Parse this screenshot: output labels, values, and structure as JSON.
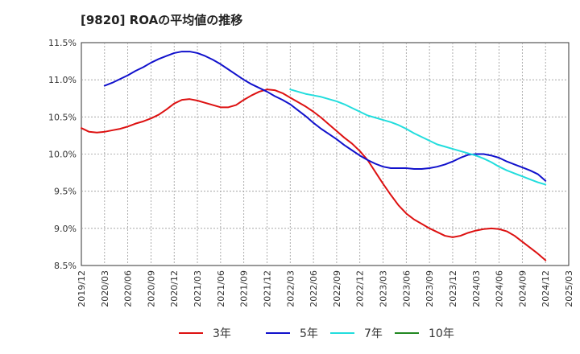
{
  "chart_data": {
    "type": "line",
    "title": "[9820]  ROAの平均値の推移",
    "xlabel": "",
    "ylabel": "",
    "x_tick_labels": [
      "2019/12",
      "2020/03",
      "2020/06",
      "2020/09",
      "2020/12",
      "2021/03",
      "2021/06",
      "2021/09",
      "2021/12",
      "2022/03",
      "2022/06",
      "2022/09",
      "2022/12",
      "2023/03",
      "2023/06",
      "2023/09",
      "2023/12",
      "2024/03",
      "2024/06",
      "2024/09",
      "2024/12",
      "2025/03"
    ],
    "y_tick_labels": [
      "8.5%",
      "9.0%",
      "9.5%",
      "10.0%",
      "10.5%",
      "11.0%",
      "11.5%"
    ],
    "y_ticks": [
      8.5,
      9.0,
      9.5,
      10.0,
      10.5,
      11.0,
      11.5
    ],
    "ylim": [
      8.5,
      11.5
    ],
    "x_range": [
      "2019/12",
      "2025/03"
    ],
    "grid": true,
    "legend_position": "bottom",
    "series": [
      {
        "name": "3年",
        "color": "#dd1111",
        "points": [
          [
            "2019/12",
            10.35
          ],
          [
            "2020/01",
            10.3
          ],
          [
            "2020/02",
            10.29
          ],
          [
            "2020/03",
            10.3
          ],
          [
            "2020/04",
            10.32
          ],
          [
            "2020/05",
            10.34
          ],
          [
            "2020/06",
            10.37
          ],
          [
            "2020/07",
            10.41
          ],
          [
            "2020/08",
            10.44
          ],
          [
            "2020/09",
            10.48
          ],
          [
            "2020/10",
            10.53
          ],
          [
            "2020/11",
            10.6
          ],
          [
            "2020/12",
            10.68
          ],
          [
            "2021/01",
            10.73
          ],
          [
            "2021/02",
            10.74
          ],
          [
            "2021/03",
            10.72
          ],
          [
            "2021/04",
            10.69
          ],
          [
            "2021/05",
            10.66
          ],
          [
            "2021/06",
            10.63
          ],
          [
            "2021/07",
            10.63
          ],
          [
            "2021/08",
            10.66
          ],
          [
            "2021/09",
            10.73
          ],
          [
            "2021/10",
            10.79
          ],
          [
            "2021/11",
            10.84
          ],
          [
            "2021/12",
            10.87
          ],
          [
            "2022/01",
            10.86
          ],
          [
            "2022/02",
            10.82
          ],
          [
            "2022/03",
            10.76
          ],
          [
            "2022/04",
            10.7
          ],
          [
            "2022/05",
            10.64
          ],
          [
            "2022/06",
            10.57
          ],
          [
            "2022/07",
            10.49
          ],
          [
            "2022/08",
            10.4
          ],
          [
            "2022/09",
            10.31
          ],
          [
            "2022/10",
            10.22
          ],
          [
            "2022/11",
            10.14
          ],
          [
            "2022/12",
            10.04
          ],
          [
            "2022/13",
            9.92
          ],
          [
            "2023/02",
            9.76
          ],
          [
            "2023/03",
            9.6
          ],
          [
            "2023/04",
            9.45
          ],
          [
            "2023/05",
            9.31
          ],
          [
            "2023/06",
            9.2
          ],
          [
            "2023/07",
            9.12
          ],
          [
            "2023/08",
            9.06
          ],
          [
            "2023/09",
            9.0
          ],
          [
            "2023/10",
            8.95
          ],
          [
            "2023/11",
            8.9
          ],
          [
            "2023/12",
            8.88
          ],
          [
            "2024/01",
            8.9
          ],
          [
            "2024/02",
            8.94
          ],
          [
            "2024/03",
            8.97
          ],
          [
            "2024/04",
            8.99
          ],
          [
            "2024/05",
            9.0
          ],
          [
            "2024/06",
            8.99
          ],
          [
            "2024/07",
            8.96
          ],
          [
            "2024/08",
            8.9
          ],
          [
            "2024/09",
            8.82
          ],
          [
            "2024/10",
            8.74
          ],
          [
            "2024/11",
            8.66
          ],
          [
            "2024/12",
            8.57
          ]
        ]
      },
      {
        "name": "5年",
        "color": "#1111cc",
        "points": [
          [
            "2020/03",
            10.92
          ],
          [
            "2020/04",
            10.96
          ],
          [
            "2020/05",
            11.01
          ],
          [
            "2020/06",
            11.06
          ],
          [
            "2020/07",
            11.12
          ],
          [
            "2020/08",
            11.17
          ],
          [
            "2020/09",
            11.23
          ],
          [
            "2020/10",
            11.28
          ],
          [
            "2020/11",
            11.32
          ],
          [
            "2020/12",
            11.36
          ],
          [
            "2021/01",
            11.38
          ],
          [
            "2021/02",
            11.38
          ],
          [
            "2021/03",
            11.36
          ],
          [
            "2021/04",
            11.32
          ],
          [
            "2021/05",
            11.27
          ],
          [
            "2021/06",
            11.21
          ],
          [
            "2021/07",
            11.14
          ],
          [
            "2021/08",
            11.07
          ],
          [
            "2021/09",
            11.0
          ],
          [
            "2021/10",
            10.94
          ],
          [
            "2021/11",
            10.89
          ],
          [
            "2021/12",
            10.84
          ],
          [
            "2022/01",
            10.78
          ],
          [
            "2022/02",
            10.73
          ],
          [
            "2022/03",
            10.67
          ],
          [
            "2022/04",
            10.59
          ],
          [
            "2022/05",
            10.51
          ],
          [
            "2022/06",
            10.42
          ],
          [
            "2022/07",
            10.34
          ],
          [
            "2022/08",
            10.27
          ],
          [
            "2022/09",
            10.2
          ],
          [
            "2022/10",
            10.12
          ],
          [
            "2022/11",
            10.05
          ],
          [
            "2022/12",
            9.98
          ],
          [
            "2023/01",
            9.92
          ],
          [
            "2023/02",
            9.87
          ],
          [
            "2023/03",
            9.83
          ],
          [
            "2023/04",
            9.81
          ],
          [
            "2023/05",
            9.81
          ],
          [
            "2023/06",
            9.81
          ],
          [
            "2023/07",
            9.8
          ],
          [
            "2023/08",
            9.8
          ],
          [
            "2023/09",
            9.81
          ],
          [
            "2023/10",
            9.83
          ],
          [
            "2023/11",
            9.86
          ],
          [
            "2023/12",
            9.9
          ],
          [
            "2024/01",
            9.95
          ],
          [
            "2024/02",
            9.99
          ],
          [
            "2024/03",
            10.0
          ],
          [
            "2024/04",
            10.0
          ],
          [
            "2024/05",
            9.98
          ],
          [
            "2024/06",
            9.95
          ],
          [
            "2024/07",
            9.9
          ],
          [
            "2024/08",
            9.86
          ],
          [
            "2024/09",
            9.82
          ],
          [
            "2024/10",
            9.78
          ],
          [
            "2024/11",
            9.73
          ],
          [
            "2024/12",
            9.64
          ]
        ]
      },
      {
        "name": "7年",
        "color": "#22dddd",
        "points": [
          [
            "2022/03",
            10.87
          ],
          [
            "2022/04",
            10.84
          ],
          [
            "2022/05",
            10.81
          ],
          [
            "2022/06",
            10.79
          ],
          [
            "2022/07",
            10.77
          ],
          [
            "2022/08",
            10.74
          ],
          [
            "2022/09",
            10.71
          ],
          [
            "2022/10",
            10.67
          ],
          [
            "2022/11",
            10.62
          ],
          [
            "2022/12",
            10.57
          ],
          [
            "2023/01",
            10.52
          ],
          [
            "2023/02",
            10.49
          ],
          [
            "2023/03",
            10.46
          ],
          [
            "2023/04",
            10.43
          ],
          [
            "2023/05",
            10.39
          ],
          [
            "2023/06",
            10.34
          ],
          [
            "2023/07",
            10.28
          ],
          [
            "2023/08",
            10.23
          ],
          [
            "2023/09",
            10.18
          ],
          [
            "2023/10",
            10.13
          ],
          [
            "2023/11",
            10.1
          ],
          [
            "2023/12",
            10.07
          ],
          [
            "2024/01",
            10.04
          ],
          [
            "2024/02",
            10.01
          ],
          [
            "2024/03",
            9.98
          ],
          [
            "2024/04",
            9.94
          ],
          [
            "2024/05",
            9.89
          ],
          [
            "2024/06",
            9.83
          ],
          [
            "2024/07",
            9.78
          ],
          [
            "2024/08",
            9.74
          ],
          [
            "2024/09",
            9.7
          ],
          [
            "2024/10",
            9.66
          ],
          [
            "2024/11",
            9.62
          ],
          [
            "2024/12",
            9.59
          ]
        ]
      },
      {
        "name": "10年",
        "color": "#228822",
        "points": []
      }
    ]
  }
}
